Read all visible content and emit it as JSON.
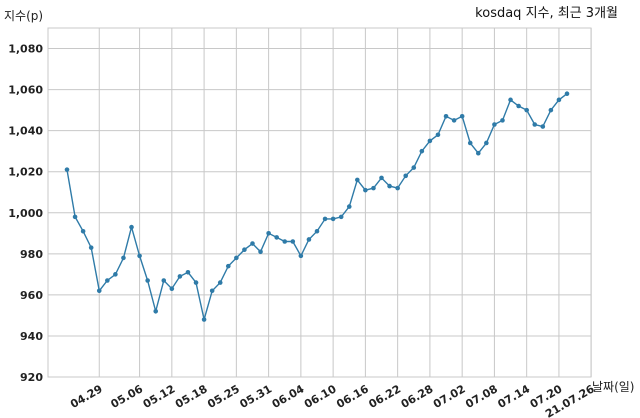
{
  "chart_data": {
    "type": "line",
    "title": "kosdaq 지수, 최근 3개월",
    "ylabel": "지수(p)",
    "xlabel": "날짜(일)",
    "ylim": [
      920,
      1090
    ],
    "yticks": [
      920,
      940,
      960,
      980,
      1000,
      1020,
      1040,
      1060,
      1080
    ],
    "ytick_labels": [
      "920",
      "940",
      "960",
      "980",
      "1,000",
      "1,020",
      "1,040",
      "1,060",
      "1,080"
    ],
    "xtick_labels": [
      "04.29",
      "05.06",
      "05.12",
      "05.18",
      "05.25",
      "05.31",
      "06.04",
      "06.10",
      "06.16",
      "06.22",
      "06.28",
      "07.02",
      "07.08",
      "07.14",
      "07.20",
      "21.07.26"
    ],
    "xtick_index": [
      4,
      9,
      13,
      17,
      21,
      25,
      29,
      33,
      37,
      41,
      45,
      49,
      53,
      57,
      61,
      65
    ],
    "grid": true,
    "line_color": "#2f7ba8",
    "series": [
      {
        "values": [
          1021,
          998,
          991,
          983,
          962,
          967,
          970,
          978,
          993,
          979,
          967,
          952,
          967,
          963,
          969,
          971,
          966,
          948,
          962,
          966,
          974,
          978,
          982,
          985,
          981,
          990,
          988,
          986,
          986,
          979,
          987,
          991,
          997,
          997,
          998,
          1003,
          1016,
          1011,
          1012,
          1017,
          1013,
          1012,
          1018,
          1022,
          1030,
          1035,
          1038,
          1047,
          1045,
          1047,
          1034,
          1029,
          1034,
          1043,
          1045,
          1055,
          1052,
          1050,
          1043,
          1042,
          1050,
          1055,
          1058
        ]
      }
    ]
  }
}
